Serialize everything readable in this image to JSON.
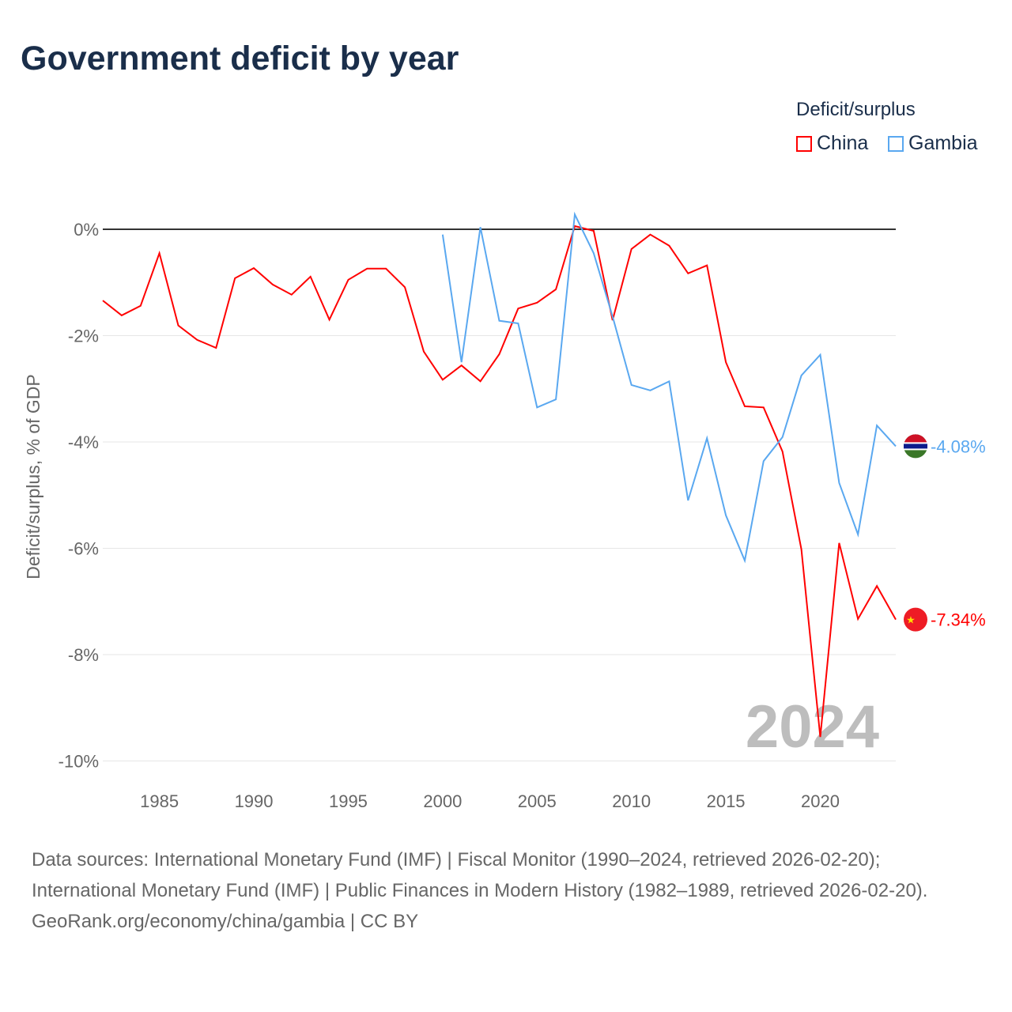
{
  "title": "Government deficit by year",
  "legend": {
    "title": "Deficit/surplus",
    "items": [
      {
        "name": "China",
        "color": "#ff0000"
      },
      {
        "name": "Gambia",
        "color": "#5aa8f0"
      }
    ]
  },
  "chart_data": {
    "type": "line",
    "title": "Government deficit by year",
    "xlabel": "",
    "ylabel": "Deficit/surplus, % of GDP",
    "xlim": [
      1982,
      2024
    ],
    "ylim": [
      -10,
      0
    ],
    "yticks": [
      0,
      -2,
      -4,
      -6,
      -8,
      -10
    ],
    "ytick_labels": [
      "0%",
      "-2%",
      "-4%",
      "-6%",
      "-8%",
      "-10%"
    ],
    "xticks": [
      1985,
      1990,
      1995,
      2000,
      2005,
      2010,
      2015,
      2020
    ],
    "xtick_labels": [
      "1985",
      "1990",
      "1995",
      "2000",
      "2005",
      "2010",
      "2015",
      "2020"
    ],
    "year_label": "2024",
    "legend_placement": "top-right",
    "series": [
      {
        "name": "China",
        "color": "#ff0000",
        "end_label": "-7.34%",
        "x": [
          1982,
          1983,
          1984,
          1985,
          1986,
          1987,
          1988,
          1989,
          1990,
          1991,
          1992,
          1993,
          1994,
          1995,
          1996,
          1997,
          1998,
          1999,
          2000,
          2001,
          2002,
          2003,
          2004,
          2005,
          2006,
          2007,
          2008,
          2009,
          2010,
          2011,
          2012,
          2013,
          2014,
          2015,
          2016,
          2017,
          2018,
          2019,
          2020,
          2021,
          2022,
          2023,
          2024
        ],
        "values": [
          -1.34,
          -1.62,
          -1.44,
          -0.45,
          -1.81,
          -2.08,
          -2.23,
          -0.92,
          -0.73,
          -1.04,
          -1.23,
          -0.89,
          -1.7,
          -0.95,
          -0.74,
          -0.74,
          -1.09,
          -2.3,
          -2.83,
          -2.56,
          -2.86,
          -2.35,
          -1.49,
          -1.38,
          -1.13,
          0.06,
          -0.03,
          -1.71,
          -0.37,
          -0.1,
          -0.31,
          -0.83,
          -0.68,
          -2.5,
          -3.33,
          -3.35,
          -4.18,
          -6.02,
          -9.55,
          -5.9,
          -7.33,
          -6.71,
          -7.34
        ]
      },
      {
        "name": "Gambia",
        "color": "#5aa8f0",
        "end_label": "-4.08%",
        "x": [
          2000,
          2001,
          2002,
          2003,
          2004,
          2005,
          2006,
          2007,
          2008,
          2009,
          2010,
          2011,
          2012,
          2013,
          2014,
          2015,
          2016,
          2017,
          2018,
          2019,
          2020,
          2021,
          2022,
          2023,
          2024
        ],
        "values": [
          -0.1,
          -2.5,
          0.04,
          -1.72,
          -1.77,
          -3.35,
          -3.2,
          0.28,
          -0.45,
          -1.64,
          -2.93,
          -3.03,
          -2.86,
          -5.1,
          -3.93,
          -5.38,
          -6.23,
          -4.36,
          -3.91,
          -2.75,
          -2.36,
          -4.77,
          -5.74,
          -3.69,
          -4.08
        ]
      }
    ]
  },
  "footer": {
    "sources": "Data sources: International Monetary Fund (IMF) | Fiscal Monitor (1990–2024, retrieved 2026-02-20); International Monetary Fund (IMF) | Public Finances in Modern History (1982–1989, retrieved 2026-02-20).",
    "credit": "GeoRank.org/economy/china/gambia | CC BY"
  }
}
